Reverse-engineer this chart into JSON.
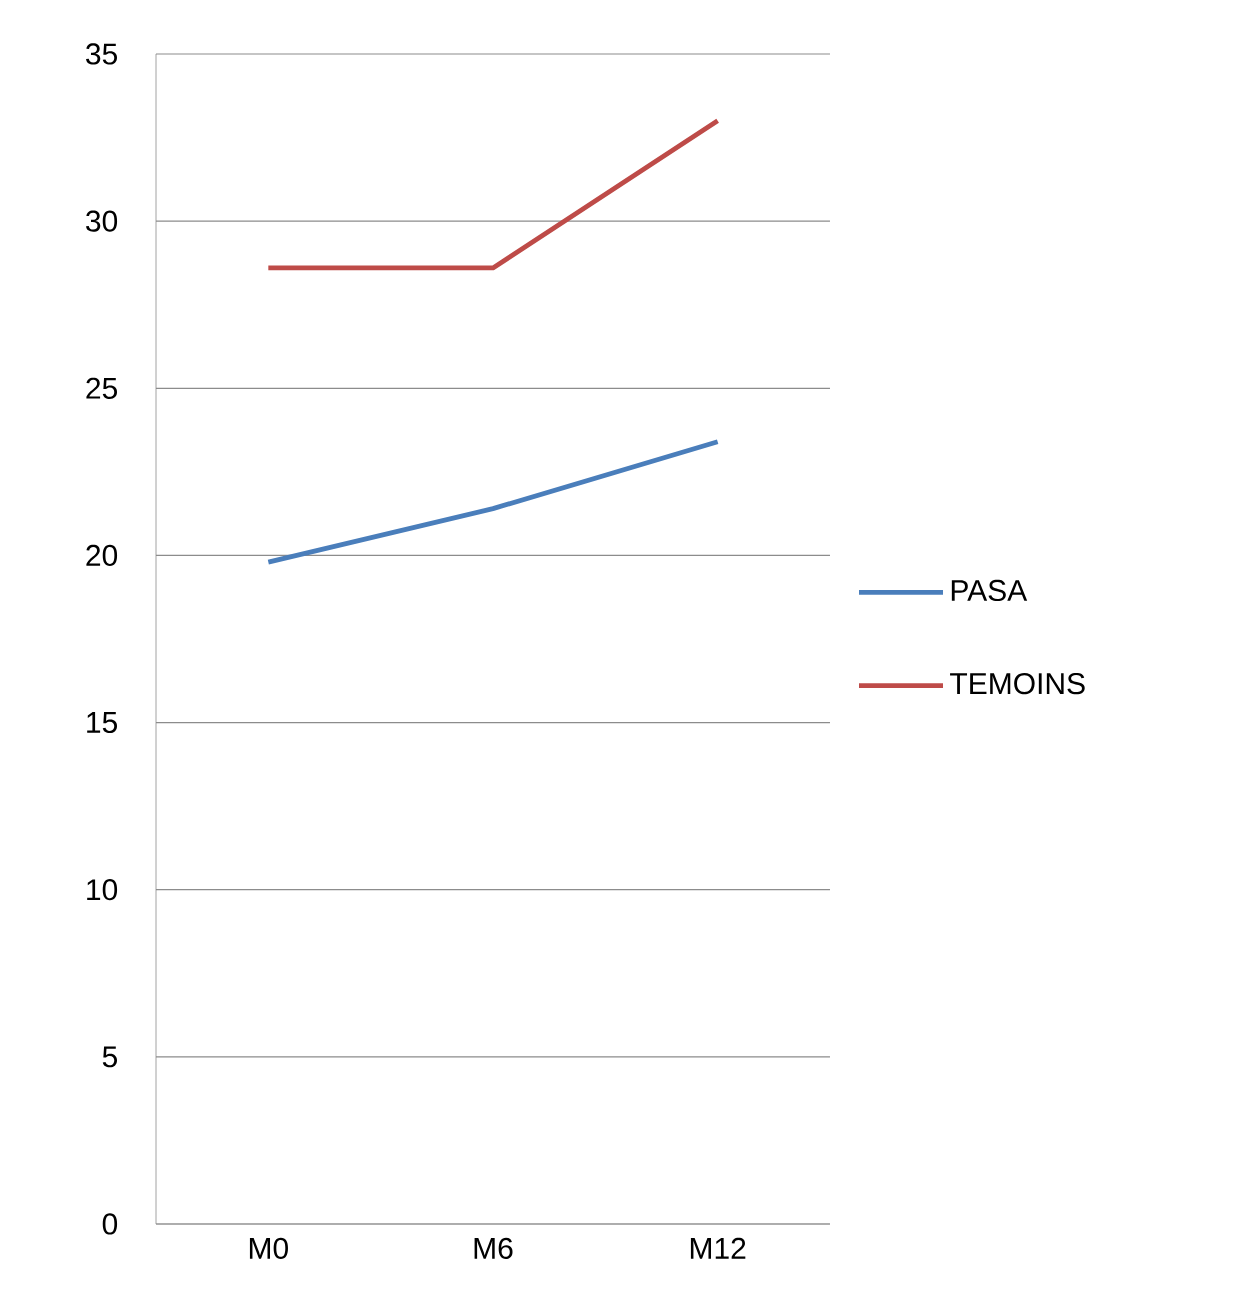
{
  "chart_data": {
    "type": "line",
    "categories": [
      "M0",
      "M6",
      "M12"
    ],
    "series": [
      {
        "name": "PASA",
        "color": "#4a7ebb",
        "values": [
          19.8,
          21.4,
          23.4
        ]
      },
      {
        "name": "TEMOINS",
        "color": "#be4b48",
        "values": [
          28.6,
          28.6,
          33.0
        ]
      }
    ],
    "ylim": [
      0,
      35
    ],
    "yticks": [
      0,
      5,
      10,
      15,
      20,
      25,
      30,
      35
    ],
    "grid": "y",
    "legend": "right",
    "marker": "none",
    "line_style": "solid"
  }
}
